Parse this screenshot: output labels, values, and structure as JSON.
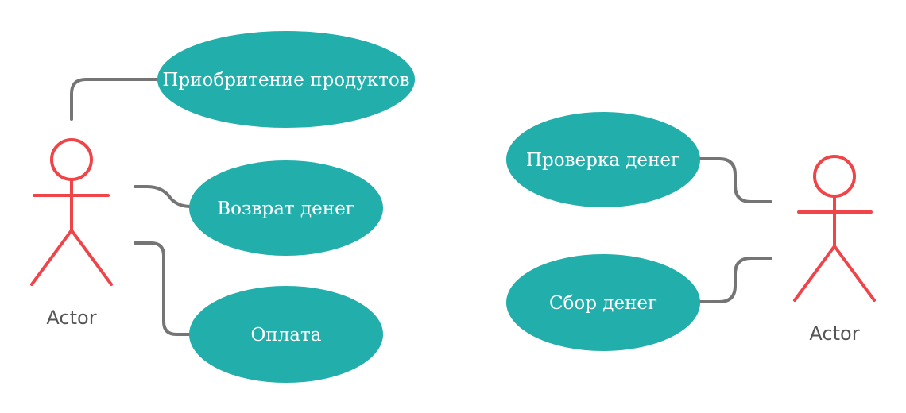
{
  "colors": {
    "usecase_fill": "#22aeab",
    "usecase_text": "#ffffff",
    "actor_stroke": "#f04449",
    "actor_label": "#555555",
    "connector": "#757575",
    "background": "#ffffff"
  },
  "actors": [
    {
      "label": "Actor"
    },
    {
      "label": "Actor"
    }
  ],
  "use_cases": [
    {
      "label": "Приобритение продуктов"
    },
    {
      "label": "Возврат денег"
    },
    {
      "label": "Оплата"
    },
    {
      "label": "Проверка денег"
    },
    {
      "label": "Сбор денег"
    }
  ]
}
